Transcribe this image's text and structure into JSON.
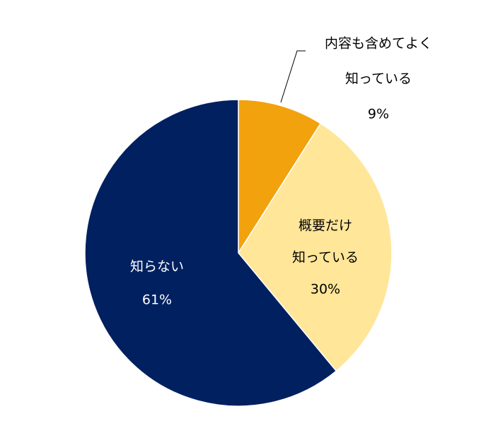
{
  "chart_data": {
    "type": "pie",
    "categories": [
      [
        "内容も含めてよく",
        "知っている"
      ],
      [
        "概要だけ",
        "知っている"
      ],
      [
        "知らない"
      ]
    ],
    "values": [
      9,
      30,
      61
    ],
    "value_labels": [
      "9%",
      "30%",
      "61%"
    ],
    "colors": [
      "#f2a20c",
      "#ffe699",
      "#002060"
    ],
    "label_colors": [
      "#000000",
      "#000000",
      "#ffffff"
    ]
  }
}
